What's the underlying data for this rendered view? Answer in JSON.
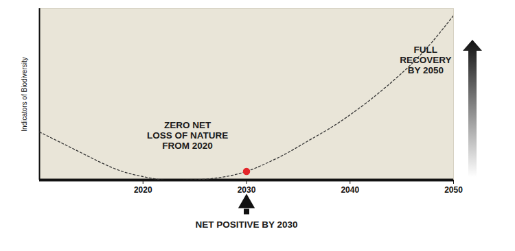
{
  "chart_data": {
    "type": "line",
    "ylabel": "Indicators of Biodiversity",
    "x": [
      2010,
      2012,
      2014,
      2016,
      2018,
      2020,
      2022,
      2024,
      2026,
      2028,
      2030,
      2032,
      2034,
      2036,
      2038,
      2040,
      2042,
      2044,
      2046,
      2048,
      2050
    ],
    "values": [
      28,
      22,
      16,
      10,
      5,
      2,
      0,
      0,
      0.5,
      2,
      5,
      10,
      16,
      23,
      30,
      38,
      47,
      57,
      68,
      81,
      96
    ],
    "xlim": [
      2010,
      2050
    ],
    "xticks": [
      2020,
      2030,
      2040,
      2050
    ],
    "ylim": [
      0,
      100
    ],
    "yticks": [],
    "tick_labels": "x",
    "line_style": "dashed",
    "color": "#333333",
    "highlight": {
      "x": 2030,
      "y": 5,
      "color": "#e3262b"
    },
    "annotations": [
      {
        "text": "ZERO NET\nLOSS OF NATURE\nFROM 2020",
        "x": 2024.3,
        "y": 26
      },
      {
        "text": "FULL\nRECOVERY\nBY 2050",
        "x": 2047.3,
        "y": 70
      },
      {
        "text": "NET POSITIVE BY 2030",
        "x": 2030,
        "y": -26
      }
    ]
  }
}
